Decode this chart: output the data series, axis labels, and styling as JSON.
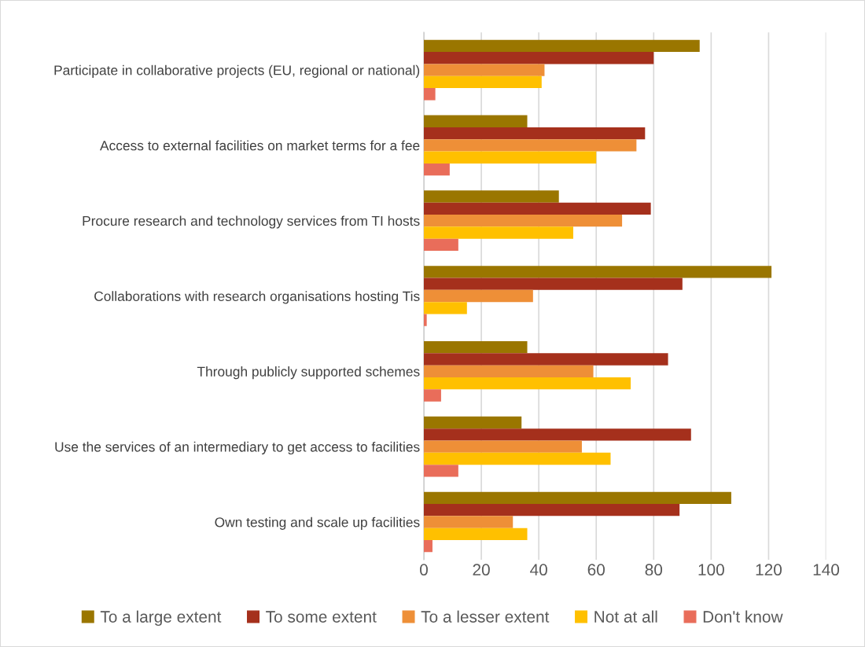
{
  "chart_data": {
    "type": "bar",
    "orientation": "horizontal",
    "categories": [
      "Participate in collaborative projects (EU, regional or national)",
      "Access to external facilities on market terms for a fee",
      "Procure research and technology services from TI hosts",
      "Collaborations with research organisations hosting Tis",
      "Through publicly supported schemes",
      "Use the services of an intermediary to get access to facilities",
      "Own testing and scale up facilities"
    ],
    "series": [
      {
        "name": "To a large extent",
        "color": "#9a7600",
        "values": [
          96,
          36,
          47,
          121,
          36,
          34,
          107
        ]
      },
      {
        "name": "To some extent",
        "color": "#a5301c",
        "values": [
          80,
          77,
          79,
          90,
          85,
          93,
          89
        ]
      },
      {
        "name": "To a lesser extent",
        "color": "#ee8f37",
        "values": [
          42,
          74,
          69,
          38,
          59,
          55,
          31
        ]
      },
      {
        "name": "Not at all",
        "color": "#ffc000",
        "values": [
          41,
          60,
          52,
          15,
          72,
          65,
          36
        ]
      },
      {
        "name": "Don't know",
        "color": "#e96d5a",
        "values": [
          4,
          9,
          12,
          1,
          6,
          12,
          3
        ]
      }
    ],
    "xlim": [
      0,
      140
    ],
    "xticks": [
      0,
      20,
      40,
      60,
      80,
      100,
      120,
      140
    ],
    "grid": "x",
    "legend": "bottom"
  }
}
